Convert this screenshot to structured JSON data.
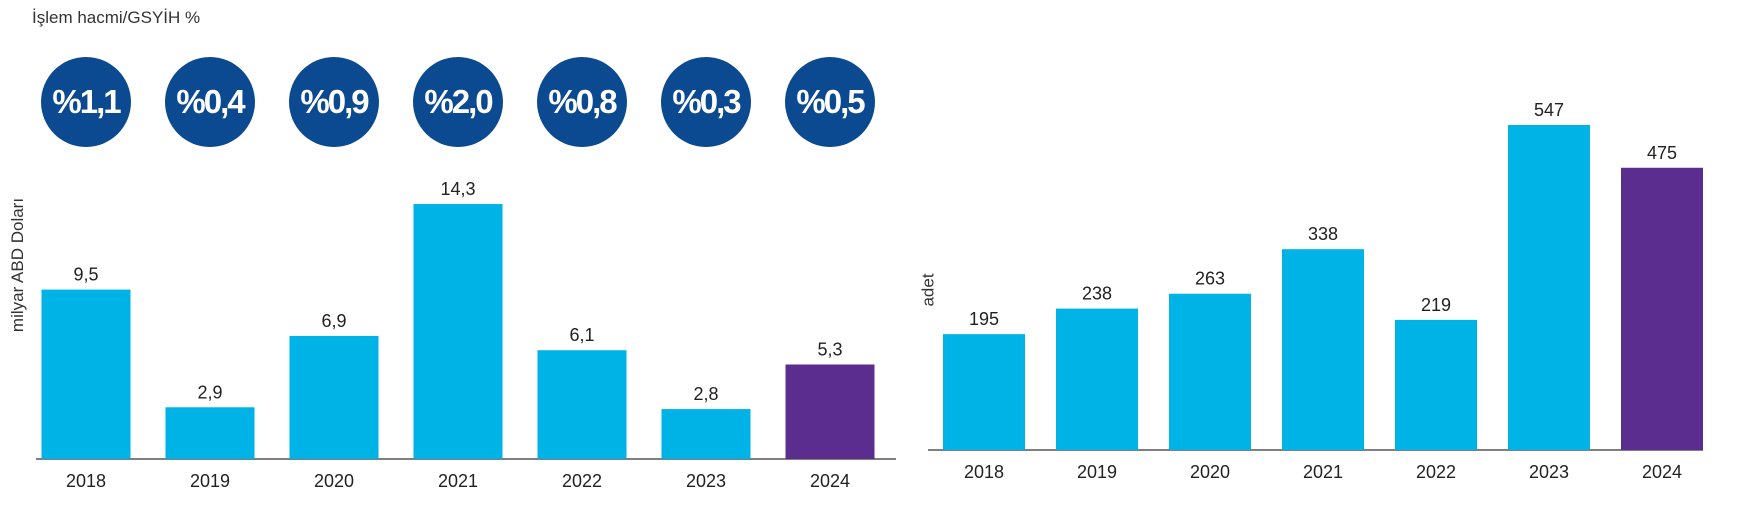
{
  "chart_data": [
    {
      "type": "bar",
      "subtitle": "İşlem hacmi/GSYİH %",
      "ylabel": "milyar ABD  Doları",
      "categories": [
        "2018",
        "2019",
        "2020",
        "2021",
        "2022",
        "2023",
        "2024"
      ],
      "values": [
        9.5,
        2.9,
        6.9,
        14.3,
        6.1,
        2.8,
        5.3
      ],
      "value_labels": [
        "9,5",
        "2,9",
        "6,9",
        "14,3",
        "6,1",
        "2,8",
        "5,3"
      ],
      "ratio_badges": [
        "%1,1",
        "%0,4",
        "%0,9",
        "%2,0",
        "%0,8",
        "%0,3",
        "%0,5"
      ],
      "colors": [
        "#00b3e6",
        "#00b3e6",
        "#00b3e6",
        "#00b3e6",
        "#00b3e6",
        "#00b3e6",
        "#5b2d8e"
      ],
      "grid": false
    },
    {
      "type": "bar",
      "ylabel": "adet",
      "categories": [
        "2018",
        "2019",
        "2020",
        "2021",
        "2022",
        "2023",
        "2024"
      ],
      "values": [
        195,
        238,
        263,
        338,
        219,
        547,
        475
      ],
      "value_labels": [
        "195",
        "238",
        "263",
        "338",
        "219",
        "547",
        "475"
      ],
      "colors": [
        "#00b3e6",
        "#00b3e6",
        "#00b3e6",
        "#00b3e6",
        "#00b3e6",
        "#00b3e6",
        "#5b2d8e"
      ],
      "grid": false
    }
  ],
  "badge_color": "#0b4a91"
}
